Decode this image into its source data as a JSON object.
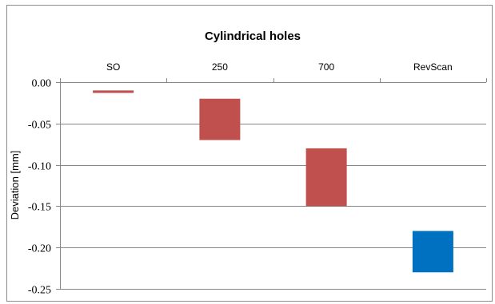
{
  "chart_data": {
    "type": "bar",
    "subtype": "floating",
    "title": "Cylindrical  holes",
    "xlabel": "",
    "ylabel": "Deviation [mm]",
    "x_axis_position": "top",
    "categories": [
      "SO",
      "250",
      "700",
      "RevScan"
    ],
    "ylim": [
      -0.25,
      0.0
    ],
    "yticks": [
      "0.00",
      "-0.05",
      "-0.10",
      "-0.15",
      "-0.20",
      "-0.25"
    ],
    "ytick_values": [
      0.0,
      -0.05,
      -0.1,
      -0.15,
      -0.2,
      -0.25
    ],
    "grid": true,
    "bars": [
      {
        "category": "SO",
        "top": -0.01,
        "bottom": -0.013,
        "color": "#c0504d"
      },
      {
        "category": "250",
        "top": -0.02,
        "bottom": -0.07,
        "color": "#c0504d"
      },
      {
        "category": "700",
        "top": -0.08,
        "bottom": -0.15,
        "color": "#c0504d"
      },
      {
        "category": "RevScan",
        "top": -0.18,
        "bottom": -0.23,
        "color": "#0070c0"
      }
    ]
  }
}
